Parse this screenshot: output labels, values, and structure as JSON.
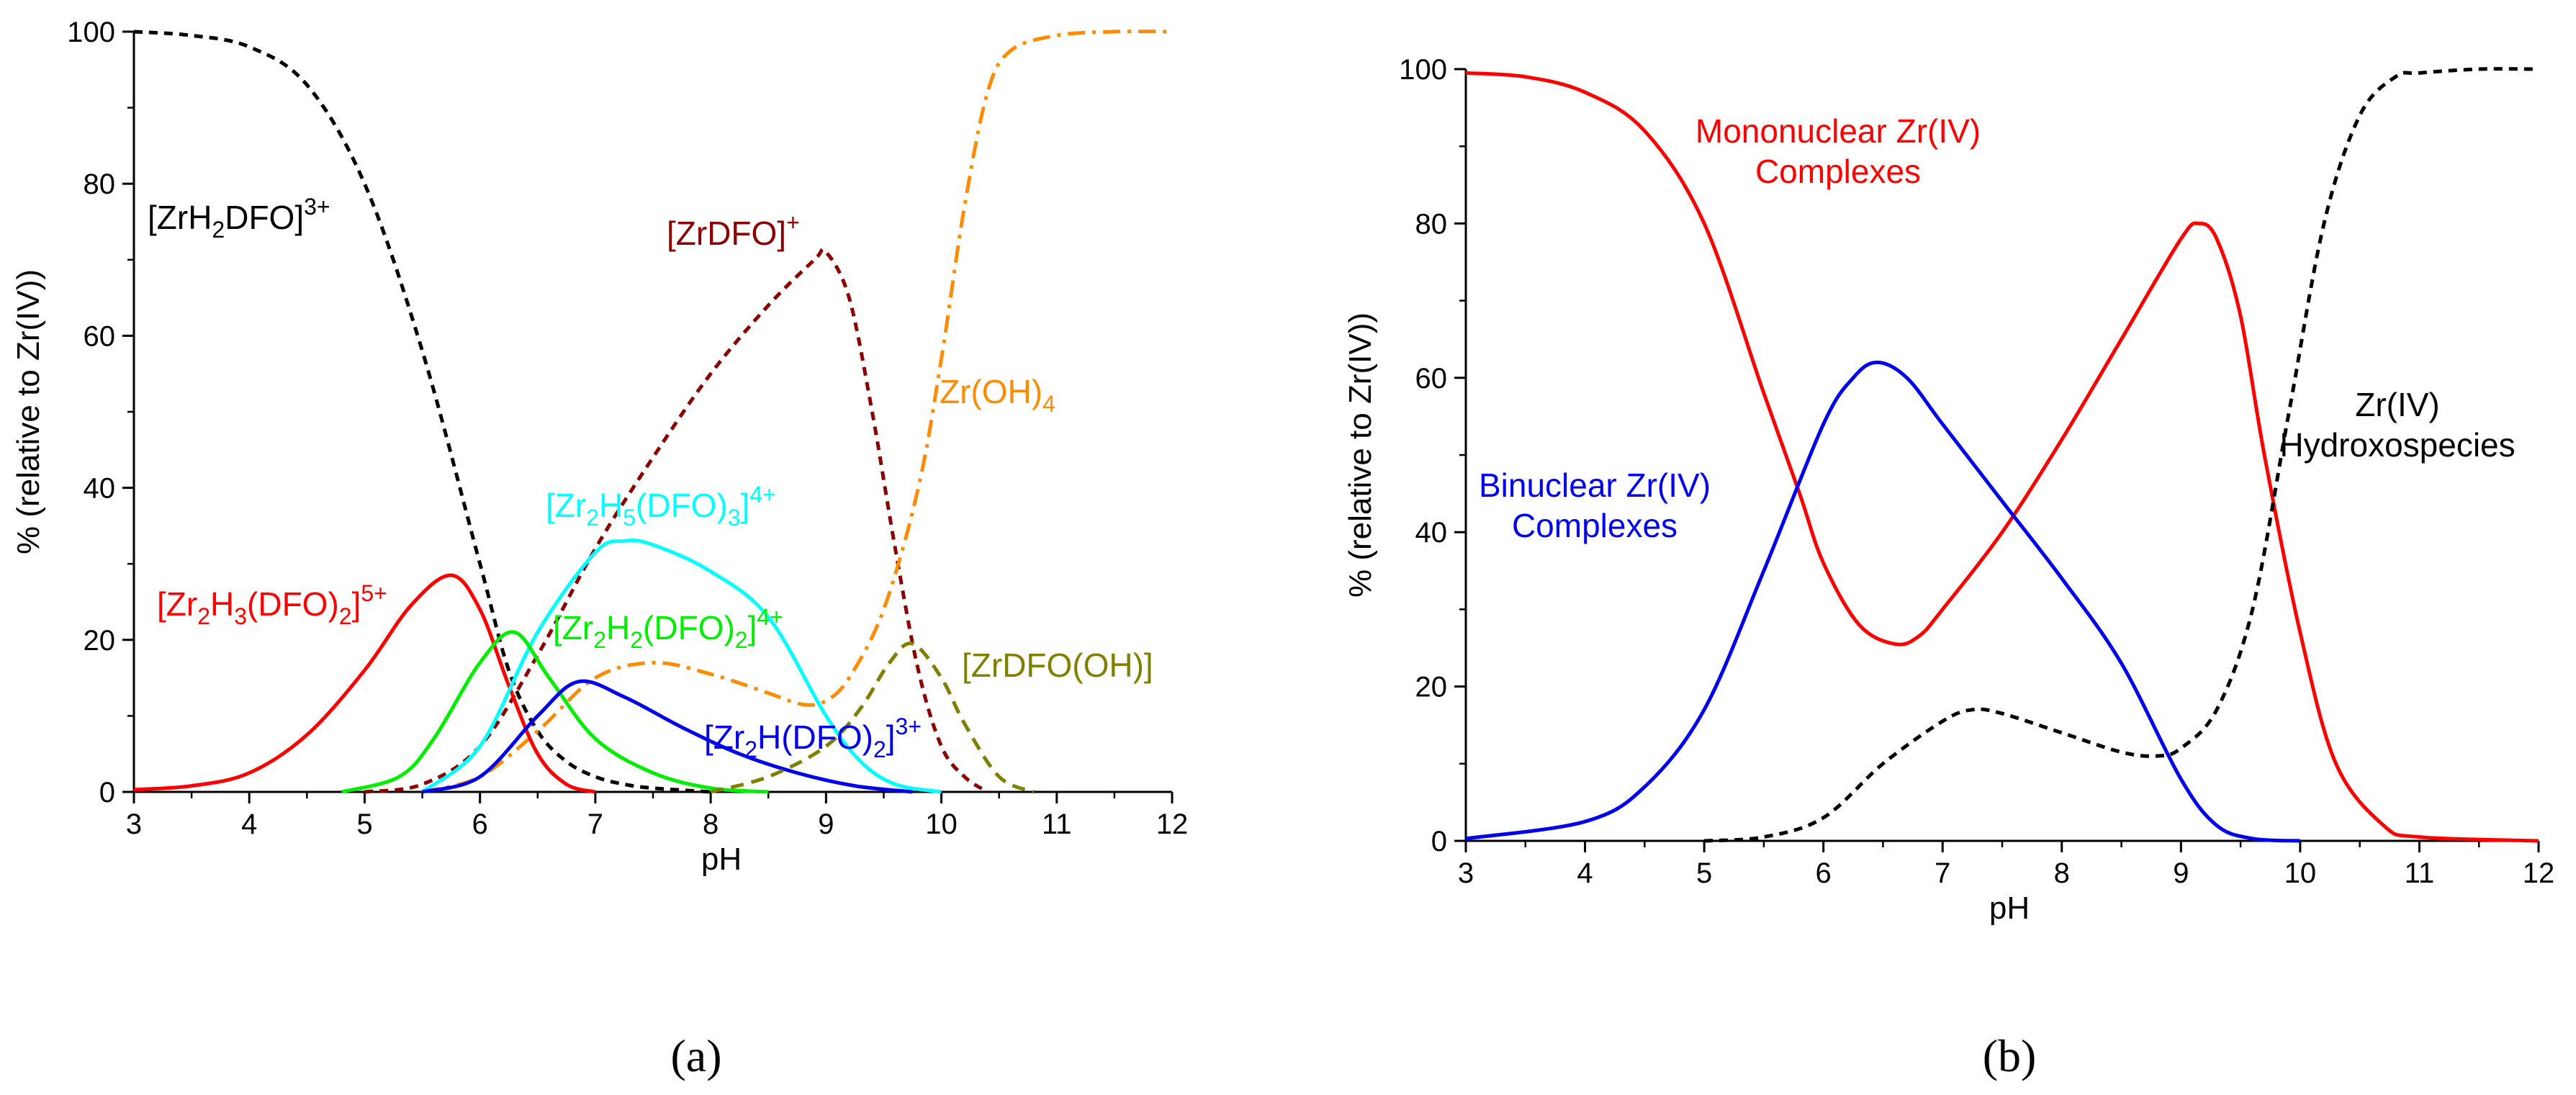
{
  "chart_data": [
    {
      "type": "line",
      "panel_label": "(a)",
      "xlabel": "pH",
      "ylabel": "% (relative to Zr(IV))",
      "xlim": [
        3,
        12
      ],
      "ylim": [
        0,
        100
      ],
      "x_ticks": [
        3,
        4,
        5,
        6,
        7,
        8,
        9,
        10,
        11,
        12
      ],
      "y_ticks": [
        0,
        20,
        40,
        60,
        80,
        100
      ],
      "series": [
        {
          "name": "[ZrH2DFO]3+",
          "label": {
            "base": "[ZrH",
            "sub1": "2",
            "mid": "DFO]",
            "sup": "3+"
          },
          "color": "#000000",
          "dash": "dotted",
          "x": [
            3,
            3.5,
            4,
            4.5,
            5,
            5.5,
            6,
            6.25,
            6.5,
            6.75,
            7,
            7.25,
            7.5,
            8
          ],
          "y": [
            100,
            99.5,
            98,
            93,
            80,
            58,
            30,
            16,
            8,
            4,
            2,
            1,
            0.5,
            0
          ]
        },
        {
          "name": "[ZrDFO]+",
          "label": {
            "base": "[ZrDFO]",
            "sup": "+"
          },
          "color": "#8B0000",
          "dash": "dotted",
          "x": [
            5,
            5.5,
            6,
            6.5,
            7,
            7.5,
            8,
            8.5,
            8.9,
            9,
            9.2,
            9.4,
            9.6,
            9.8,
            10,
            10.2,
            10.4
          ],
          "y": [
            0,
            1,
            6,
            18,
            32,
            44,
            55,
            64,
            70,
            71,
            65,
            50,
            32,
            16,
            6,
            2,
            0
          ]
        },
        {
          "name": "Zr(OH)4",
          "label": {
            "base": "Zr(OH)",
            "sub1": "4"
          },
          "color": "#FF8C00",
          "dash": "dashdot",
          "x": [
            5.5,
            6,
            6.5,
            7,
            7.5,
            8,
            8.5,
            8.8,
            9,
            9.2,
            9.5,
            9.8,
            10,
            10.2,
            10.4,
            10.6,
            11,
            11.5,
            12
          ],
          "y": [
            0,
            2,
            8,
            15,
            17,
            15.5,
            13,
            11.5,
            12,
            15,
            24,
            40,
            57,
            77,
            92,
            97.5,
            99.5,
            100,
            100
          ]
        },
        {
          "name": "[Zr2H3(DFO)2]5+",
          "label": {
            "base": "[Zr",
            "sub1": "2",
            "mid": "H",
            "sub2": "3",
            "mid2": "(DFO)",
            "sub3": "2",
            "end": "]",
            "sup": "5+"
          },
          "color": "#FF0000",
          "dash": "solid",
          "x": [
            3,
            3.5,
            4,
            4.5,
            5,
            5.4,
            5.75,
            6,
            6.25,
            6.5,
            6.75,
            7
          ],
          "y": [
            0.3,
            0.8,
            2.5,
            7.5,
            16,
            24.5,
            28.5,
            24,
            14,
            5,
            1,
            0
          ]
        },
        {
          "name": "[Zr2H5(DFO)3]4+",
          "label": {
            "base": "[Zr",
            "sub1": "2",
            "mid": "H",
            "sub2": "5",
            "mid2": "(DFO)",
            "sub3": "3",
            "end": "]",
            "sup": "4+"
          },
          "color": "#00FFFF",
          "dash": "solid",
          "x": [
            5.5,
            6,
            6.5,
            7,
            7.25,
            7.5,
            8,
            8.5,
            9,
            9.3,
            9.6,
            10
          ],
          "y": [
            0,
            6,
            21,
            31.5,
            33,
            32.5,
            29,
            23,
            10,
            4,
            1,
            0
          ]
        },
        {
          "name": "[Zr2H2(DFO)2]4+",
          "label": {
            "base": "[Zr",
            "sub1": "2",
            "mid": "H",
            "sub2": "2",
            "mid2": "(DFO)",
            "sub3": "2",
            "end": "]",
            "sup": "4+"
          },
          "color": "#00EE00",
          "dash": "solid",
          "x": [
            4.8,
            5.3,
            5.6,
            6,
            6.3,
            6.6,
            7,
            7.5,
            8,
            8.5
          ],
          "y": [
            0,
            2,
            7,
            17,
            21,
            15,
            7,
            2.5,
            0.5,
            0
          ]
        },
        {
          "name": "[Zr2H(DFO)2]3+",
          "label": {
            "base": "[Zr",
            "sub1": "2",
            "mid": "H(DFO)",
            "sub2": "2",
            "end": "]",
            "sup": "3+"
          },
          "color": "#0000EE",
          "dash": "solid",
          "x": [
            5.5,
            6,
            6.5,
            6.85,
            7.25,
            7.75,
            8.25,
            8.75,
            9.25,
            9.75
          ],
          "y": [
            0,
            2,
            10,
            14.5,
            12.5,
            8.5,
            5,
            2.5,
            0.8,
            0
          ]
        },
        {
          "name": "[ZrDFO(OH)]",
          "label": {
            "base": "[ZrDFO(OH)]"
          },
          "color": "#808000",
          "dash": "dashed",
          "x": [
            8,
            8.5,
            9,
            9.3,
            9.55,
            9.75,
            10,
            10.2,
            10.5,
            10.8
          ],
          "y": [
            0,
            2,
            6,
            11,
            17,
            19.5,
            15,
            9,
            2,
            0
          ]
        }
      ]
    },
    {
      "type": "line",
      "panel_label": "(b)",
      "xlabel": "pH",
      "ylabel": "% (relative to Zr(IV))",
      "xlim": [
        3,
        12
      ],
      "ylim": [
        0,
        100
      ],
      "x_ticks": [
        3,
        4,
        5,
        6,
        7,
        8,
        9,
        10,
        11,
        12
      ],
      "y_ticks": [
        0,
        20,
        40,
        60,
        80,
        100
      ],
      "series": [
        {
          "name": "Mononuclear Zr(IV) Complexes",
          "lines": [
            "Mononuclear Zr(IV)",
            "Complexes"
          ],
          "color": "#FF0000",
          "dash": "solid",
          "x": [
            3,
            3.5,
            4,
            4.5,
            5,
            5.5,
            5.8,
            6,
            6.3,
            6.6,
            6.8,
            7,
            7.5,
            8,
            8.5,
            9,
            9.15,
            9.3,
            9.5,
            9.7,
            10,
            10.3,
            10.7,
            11,
            12
          ],
          "y": [
            99.5,
            99,
            97,
            92,
            80,
            58,
            45,
            36,
            28,
            25.5,
            26.5,
            30,
            40,
            52,
            65,
            78,
            80,
            78,
            68,
            50,
            27,
            10,
            2,
            0.5,
            0
          ]
        },
        {
          "name": "Binuclear Zr(IV) Complexes",
          "lines": [
            "Binuclear Zr(IV)",
            "Complexes"
          ],
          "color": "#0000EE",
          "dash": "solid",
          "x": [
            3,
            4,
            4.5,
            5,
            5.5,
            6,
            6.25,
            6.45,
            6.7,
            7,
            7.5,
            8,
            8.5,
            9,
            9.3,
            9.6,
            10
          ],
          "y": [
            0.3,
            2.5,
            7,
            17,
            35,
            54,
            60,
            62,
            60,
            54,
            44,
            34,
            23,
            8,
            2,
            0.3,
            0
          ]
        },
        {
          "name": "Zr(IV) Hydroxospecies",
          "lines": [
            "Zr(IV)",
            "Hydroxospecies"
          ],
          "color": "#000000",
          "dash": "dotted",
          "x": [
            5,
            5.5,
            6,
            6.5,
            7,
            7.25,
            7.5,
            8,
            8.5,
            8.8,
            9,
            9.3,
            9.6,
            9.9,
            10.2,
            10.5,
            10.8,
            11,
            11.5,
            12
          ],
          "y": [
            0,
            0.5,
            3,
            10,
            15.5,
            17,
            16.5,
            14,
            11.5,
            11,
            12,
            17,
            30,
            55,
            80,
            94,
            99,
            99.5,
            100,
            100
          ]
        }
      ]
    }
  ]
}
